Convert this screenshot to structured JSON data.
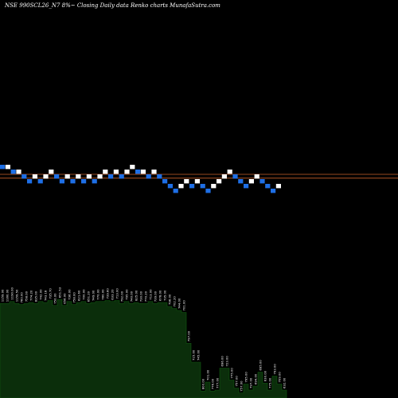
{
  "header": {
    "title": "NSE 990SCL26_N7 8%~  Closing Daily data  Renko  charts MunafaSutra.com"
  },
  "colors": {
    "background": "#000000",
    "up_brick": "#ffffff",
    "down_brick": "#1e6fe6",
    "reference_line": "#c8602a",
    "volume_fill": "#0b2e0b",
    "volume_edge": "#0f5a0f",
    "label_text": "#ffffff"
  },
  "chart_data": [
    {
      "type": "renko",
      "title": "NSE 990SCL26_N7 8%~  Closing Daily data  Renko  charts MunafaSutra.com",
      "brick_size": 1,
      "y_units": "brick levels (relative)",
      "reference_lines": [
        0.5,
        -0.3
      ],
      "bricks": [
        {
          "dir": "down",
          "level": 2
        },
        {
          "dir": "up",
          "level": 2
        },
        {
          "dir": "down",
          "level": 1
        },
        {
          "dir": "up",
          "level": 1
        },
        {
          "dir": "down",
          "level": 0
        },
        {
          "dir": "down",
          "level": -1
        },
        {
          "dir": "up",
          "level": 0
        },
        {
          "dir": "down",
          "level": -1
        },
        {
          "dir": "up",
          "level": 0
        },
        {
          "dir": "up",
          "level": 1
        },
        {
          "dir": "down",
          "level": 0
        },
        {
          "dir": "down",
          "level": -1
        },
        {
          "dir": "up",
          "level": 0
        },
        {
          "dir": "down",
          "level": -1
        },
        {
          "dir": "up",
          "level": 0
        },
        {
          "dir": "down",
          "level": -1
        },
        {
          "dir": "up",
          "level": 0
        },
        {
          "dir": "down",
          "level": -1
        },
        {
          "dir": "up",
          "level": 0
        },
        {
          "dir": "up",
          "level": 1
        },
        {
          "dir": "down",
          "level": 0
        },
        {
          "dir": "up",
          "level": 1
        },
        {
          "dir": "down",
          "level": 0
        },
        {
          "dir": "up",
          "level": 1
        },
        {
          "dir": "up",
          "level": 2
        },
        {
          "dir": "down",
          "level": 1
        },
        {
          "dir": "up",
          "level": 1
        },
        {
          "dir": "down",
          "level": 0
        },
        {
          "dir": "up",
          "level": 1
        },
        {
          "dir": "down",
          "level": 0
        },
        {
          "dir": "down",
          "level": -1
        },
        {
          "dir": "down",
          "level": -2
        },
        {
          "dir": "down",
          "level": -3
        },
        {
          "dir": "up",
          "level": -2
        },
        {
          "dir": "up",
          "level": -1
        },
        {
          "dir": "down",
          "level": -2
        },
        {
          "dir": "up",
          "level": -1
        },
        {
          "dir": "down",
          "level": -2
        },
        {
          "dir": "down",
          "level": -3
        },
        {
          "dir": "up",
          "level": -2
        },
        {
          "dir": "up",
          "level": -1
        },
        {
          "dir": "up",
          "level": 0
        },
        {
          "dir": "up",
          "level": 1
        },
        {
          "dir": "down",
          "level": 0
        },
        {
          "dir": "down",
          "level": -1
        },
        {
          "dir": "down",
          "level": -2
        },
        {
          "dir": "up",
          "level": -1
        },
        {
          "dir": "up",
          "level": 0
        },
        {
          "dir": "down",
          "level": -1
        },
        {
          "dir": "down",
          "level": -2
        },
        {
          "dir": "down",
          "level": -3
        },
        {
          "dir": "up",
          "level": -2
        }
      ]
    },
    {
      "type": "area",
      "x_units": "brick index",
      "y_units": "relative volume (0-1)",
      "volume_profile": [
        0.95,
        0.95,
        0.97,
        0.95,
        0.94,
        0.95,
        0.96,
        0.95,
        0.97,
        0.96,
        0.98,
        0.93,
        0.99,
        0.93,
        0.97,
        0.94,
        0.96,
        0.97,
        0.95,
        0.96,
        0.97,
        0.97,
        0.98,
        0.97,
        0.98,
        0.95,
        0.97,
        0.95,
        0.96,
        0.95,
        0.95,
        0.97,
        0.95,
        0.96,
        0.96,
        0.92,
        0.9,
        0.88,
        0.86,
        0.55,
        0.36,
        0.36,
        0.07,
        0.16,
        0.07,
        0.08,
        0.3,
        0.3,
        0.18,
        0.1,
        0.05,
        0.14,
        0.08,
        0.12,
        0.26,
        0.15,
        0.08,
        0.22,
        0.14,
        0.08
      ],
      "labels": [
        "1159.00",
        "1160.00",
        "1190.00",
        "1159.50",
        "760.00",
        "758.00",
        "774.20",
        "835.00",
        "742.00",
        "743.18",
        "735.70",
        "750.00",
        "651.53",
        "656.00",
        "736.00",
        "758.00",
        "621.60",
        "700.00",
        "651.20",
        "749.00",
        "770.00",
        "780.00",
        "739.60",
        "633.20",
        "713.00",
        "792.00",
        "795.00",
        "740.00",
        "825.00",
        "730.00",
        "770.20",
        "713.00",
        "739.00",
        "678.00",
        "735.00",
        "796.00",
        "702.20",
        "744.00",
        "701.00",
        "797.00",
        "715.00",
        "745.00",
        "800.00",
        "701.00",
        "776.00",
        "777.00",
        "696.00",
        "723.00",
        "775.00",
        "757.00",
        "757.00",
        "795.00",
        "797.00",
        "694.00",
        "695.00",
        "630.00",
        "775.00",
        "793.00",
        "709.00",
        "632.00"
      ]
    }
  ]
}
